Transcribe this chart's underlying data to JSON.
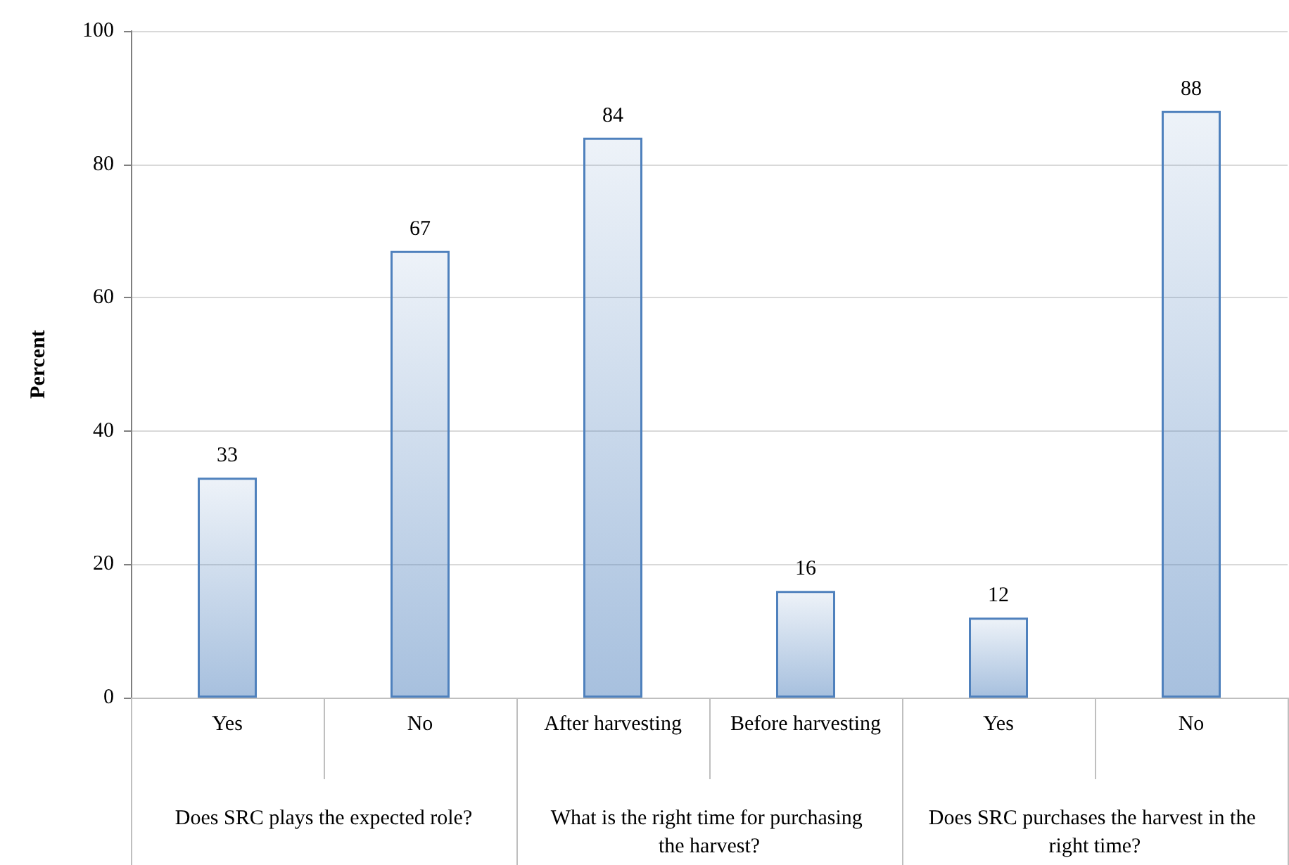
{
  "chart_data": {
    "type": "bar",
    "ylabel": "Percent",
    "categories": [
      "Yes",
      "No",
      "After harvesting",
      "Before harvesting",
      "Yes",
      "No"
    ],
    "values": [
      33,
      67,
      84,
      16,
      12,
      88
    ],
    "color": "#4f81bd",
    "ylim": [
      0,
      100
    ],
    "yticks": [
      0,
      20,
      40,
      60,
      80,
      100
    ],
    "grid": "y",
    "data_labels": true,
    "annotations": [
      "Does SRC plays the expected role?",
      "What is the right time for purchasing the harvest?",
      "Does SRC purchases the harvest in the right time?"
    ]
  }
}
